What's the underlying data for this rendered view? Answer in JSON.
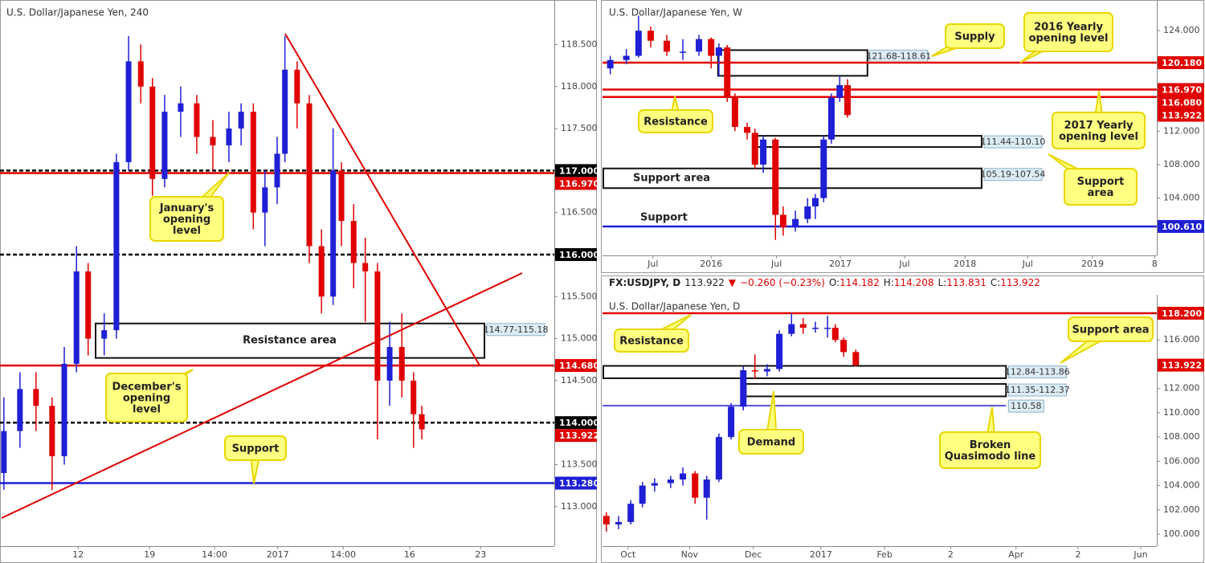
{
  "chart_data": [
    {
      "type": "candlestick",
      "title": "U.S. Dollar/Japanese Yen, 240",
      "up_color": "#1f1fd6",
      "down_color": "#e00000",
      "xlim": [
        0,
        100
      ],
      "ylim": [
        112.53,
        119.03
      ],
      "xticks": [
        {
          "value": 14.1,
          "label": "12"
        },
        {
          "value": 27.0,
          "label": "19"
        },
        {
          "value": 38.7,
          "label": "14:00"
        },
        {
          "value": 50.1,
          "label": "2017"
        },
        {
          "value": 61.9,
          "label": "14:00"
        },
        {
          "value": 73.9,
          "label": "16"
        },
        {
          "value": 86.7,
          "label": "23"
        }
      ],
      "yticks": [
        {
          "value": 113,
          "label": "113.000"
        },
        {
          "value": 113.5,
          "label": "113.500"
        },
        {
          "value": 114.5,
          "label": "114.500"
        },
        {
          "value": 115,
          "label": "115.000"
        },
        {
          "value": 115.5,
          "label": "115.500"
        },
        {
          "value": 116.5,
          "label": "116.500"
        },
        {
          "value": 117.5,
          "label": "117.500"
        },
        {
          "value": 118,
          "label": "118.000"
        },
        {
          "value": 118.5,
          "label": "118.500"
        }
      ],
      "x": [
        0.7,
        3.6,
        6.5,
        9.4,
        11.6,
        13.8,
        15.9,
        18.8,
        21,
        23.2,
        25.4,
        27.5,
        29.7,
        32.6,
        35.5,
        38.4,
        41.3,
        43.5,
        45.7,
        47.8,
        50,
        51.4,
        53.6,
        55.8,
        58,
        60.1,
        61.6,
        63.8,
        65.9,
        68.1,
        70.3,
        72.5,
        74.6,
        76.1
      ],
      "candles": [
        [
          113.4,
          114.3,
          113.2,
          113.9
        ],
        [
          113.9,
          114.6,
          113.7,
          114.4
        ],
        [
          114.4,
          114.6,
          113.9,
          114.2
        ],
        [
          114.2,
          114.3,
          113.2,
          113.6
        ],
        [
          113.6,
          114.9,
          113.5,
          114.7
        ],
        [
          114.7,
          116.1,
          114.6,
          115.8
        ],
        [
          115.8,
          115.9,
          114.8,
          115.0
        ],
        [
          115.0,
          115.3,
          114.8,
          115.1
        ],
        [
          115.1,
          117.2,
          115.0,
          117.1
        ],
        [
          117.1,
          118.6,
          117.0,
          118.3
        ],
        [
          118.3,
          118.5,
          117.8,
          118.0
        ],
        [
          118.0,
          118.1,
          116.7,
          116.9
        ],
        [
          116.9,
          117.9,
          116.8,
          117.7
        ],
        [
          117.7,
          118.0,
          117.4,
          117.8
        ],
        [
          117.8,
          117.9,
          117.2,
          117.4
        ],
        [
          117.4,
          117.6,
          117.0,
          117.3
        ],
        [
          117.3,
          117.7,
          117.1,
          117.5
        ],
        [
          117.5,
          117.8,
          117.3,
          117.7
        ],
        [
          117.7,
          117.8,
          116.3,
          116.5
        ],
        [
          116.5,
          117.0,
          116.1,
          116.8
        ],
        [
          116.8,
          117.4,
          116.6,
          117.2
        ],
        [
          117.2,
          118.6,
          117.1,
          118.2
        ],
        [
          118.2,
          118.3,
          117.5,
          117.8
        ],
        [
          117.8,
          117.9,
          115.9,
          116.1
        ],
        [
          116.1,
          116.3,
          115.3,
          115.5
        ],
        [
          115.5,
          117.5,
          115.4,
          117.0
        ],
        [
          117.0,
          117.1,
          116.1,
          116.4
        ],
        [
          116.4,
          116.6,
          115.6,
          115.9
        ],
        [
          115.9,
          116.2,
          115.2,
          115.8
        ],
        [
          115.8,
          115.9,
          113.8,
          114.5
        ],
        [
          114.5,
          115.2,
          114.2,
          114.9
        ],
        [
          114.9,
          115.3,
          114.3,
          114.5
        ],
        [
          114.5,
          114.6,
          113.7,
          114.1
        ],
        [
          114.1,
          114.2,
          113.8,
          113.92
        ]
      ],
      "levels": [
        {
          "value": 117,
          "label": "117.000",
          "color": "#000000",
          "style": "dashed"
        },
        {
          "value": 116.97,
          "label": "116.970",
          "color": "#e00000",
          "style": "solid"
        },
        {
          "value": 116,
          "label": "116.000",
          "color": "#000000",
          "style": "dashed"
        },
        {
          "value": 114.68,
          "label": "114.680",
          "color": "#e00000",
          "style": "solid"
        },
        {
          "value": 114,
          "label": "114.000",
          "color": "#000000",
          "style": "dashed"
        },
        {
          "value": 113.922,
          "label": "113.922",
          "color": "#e00000",
          "style": "none"
        },
        {
          "value": 113.28,
          "label": "113.280",
          "color": "#1f1fd6",
          "style": "solid"
        }
      ],
      "zones": [
        {
          "low": 114.77,
          "high": 115.18,
          "x": [
            17.1,
            87.4
          ],
          "label": "114.77-115.18",
          "text": "Resistance area"
        }
      ],
      "callouts": [
        {
          "lines": [
            "January's",
            "opening",
            "level"
          ]
        },
        {
          "lines": [
            "December's",
            "opening",
            "level"
          ]
        },
        {
          "lines": [
            "Support"
          ]
        }
      ],
      "notes": []
    },
    {
      "type": "candlestick",
      "title": "U.S. Dollar/Japanese Yen, W",
      "up_color": "#1f1fd6",
      "down_color": "#e00000",
      "xlim": [
        0,
        100
      ],
      "ylim": [
        97.15,
        127.67
      ],
      "xticks": [
        {
          "value": 9.1,
          "label": "Jul"
        },
        {
          "value": 19.6,
          "label": "2016"
        },
        {
          "value": 31.4,
          "label": "Jul"
        },
        {
          "value": 42.9,
          "label": "2017"
        },
        {
          "value": 54.5,
          "label": "Jul"
        },
        {
          "value": 65.4,
          "label": "2018"
        },
        {
          "value": 76.7,
          "label": "Jul"
        },
        {
          "value": 88.4,
          "label": "2019"
        },
        {
          "value": 99.6,
          "label": "8"
        }
      ],
      "yticks": [
        {
          "value": 124,
          "label": "124.000"
        },
        {
          "value": 112,
          "label": "112.000"
        },
        {
          "value": 108,
          "label": "108.000"
        },
        {
          "value": 104,
          "label": "104.000"
        }
      ],
      "x": [
        1.4,
        4.3,
        6.5,
        8.7,
        11.6,
        14.5,
        17.4,
        19.6,
        21,
        22.5,
        23.9,
        26.1,
        27.5,
        29,
        31.2,
        32.6,
        34.8,
        37,
        38.4,
        39.9,
        41.3,
        42.8,
        44.2
      ],
      "candles": [
        [
          119.5,
          121.0,
          118.8,
          120.5
        ],
        [
          120.5,
          121.8,
          120.0,
          121.0
        ],
        [
          121.0,
          125.8,
          120.8,
          124.0
        ],
        [
          124.0,
          124.5,
          122.0,
          122.8
        ],
        [
          122.8,
          123.5,
          121.0,
          121.5
        ],
        [
          121.5,
          123.0,
          120.5,
          121.5
        ],
        [
          121.5,
          123.5,
          121.0,
          123.0
        ],
        [
          123.0,
          123.2,
          119.5,
          121.0
        ],
        [
          121.0,
          122.5,
          118.5,
          122.0
        ],
        [
          122.0,
          122.3,
          115.5,
          116.0
        ],
        [
          116.0,
          116.5,
          112.0,
          112.5
        ],
        [
          112.5,
          113.0,
          111.0,
          111.8
        ],
        [
          111.8,
          112.3,
          107.5,
          108.0
        ],
        [
          108.0,
          111.5,
          107.0,
          111.0
        ],
        [
          111.0,
          111.2,
          99.0,
          102.0
        ],
        [
          102.0,
          103.0,
          99.5,
          100.5
        ],
        [
          100.5,
          102.5,
          100.0,
          101.5
        ],
        [
          101.5,
          104.0,
          101.0,
          103.0
        ],
        [
          103.0,
          104.5,
          101.5,
          104.0
        ],
        [
          104.0,
          111.5,
          103.5,
          111.0
        ],
        [
          111.0,
          116.5,
          110.5,
          116.0
        ],
        [
          116.0,
          118.6,
          115.5,
          117.5
        ],
        [
          117.5,
          118.2,
          113.6,
          113.92
        ]
      ],
      "levels": [
        {
          "value": 120.18,
          "label": "120.180",
          "color": "#e00000",
          "style": "solid"
        },
        {
          "value": 116.97,
          "label": "116.970",
          "color": "#e00000",
          "style": "solid"
        },
        {
          "value": 116.08,
          "label": "116.080",
          "color": "#e00000",
          "style": "solid"
        },
        {
          "value": 113.922,
          "label": "113.922",
          "color": "#e00000",
          "style": "none"
        },
        {
          "value": 100.61,
          "label": "100.610",
          "color": "#1f1fd6",
          "style": "solid"
        }
      ],
      "zones": [
        {
          "low": 118.61,
          "high": 121.68,
          "x": [
            20.7,
            47.8
          ],
          "label": "121.68-118.61"
        },
        {
          "low": 110.1,
          "high": 111.44,
          "x": [
            27.5,
            68.4
          ],
          "label": "111.44-110.10"
        },
        {
          "low": 105.19,
          "high": 107.54,
          "x": [
            0,
            68.4
          ],
          "label": "105.19-107.54",
          "text": "Support area"
        }
      ],
      "callouts": [
        {
          "lines": [
            "Resistance"
          ]
        },
        {
          "lines": [
            "Supply"
          ]
        },
        {
          "lines": [
            "2016 Yearly",
            "opening level"
          ]
        },
        {
          "lines": [
            "2017 Yearly",
            "opening level"
          ]
        },
        {
          "lines": [
            "Support",
            "area"
          ]
        }
      ],
      "notes": [
        "Support"
      ]
    },
    {
      "type": "candlestick",
      "title": "U.S. Dollar/Japanese Yen, D",
      "header": {
        "symbol": "FX:USDJPY, D",
        "last": 113.922,
        "arrow": "▼",
        "change": "−0.260 (−0.23%)",
        "ohlc": [
          {
            "name": "O:",
            "value": 114.182
          },
          {
            "name": "H:",
            "value": 114.208
          },
          {
            "name": "L:",
            "value": 113.831
          },
          {
            "name": "C:",
            "value": 113.922
          }
        ]
      },
      "up_color": "#1f1fd6",
      "down_color": "#e00000",
      "xlim": [
        0,
        100
      ],
      "ylim": [
        99.01,
        119.72
      ],
      "xticks": [
        {
          "value": 4.6,
          "label": "Oct"
        },
        {
          "value": 15.7,
          "label": "Nov"
        },
        {
          "value": 27.2,
          "label": "Dec"
        },
        {
          "value": 39.4,
          "label": "2017"
        },
        {
          "value": 50.9,
          "label": "Feb"
        },
        {
          "value": 62.8,
          "label": "2"
        },
        {
          "value": 74.6,
          "label": "Apr"
        },
        {
          "value": 85.8,
          "label": "2"
        },
        {
          "value": 97.1,
          "label": "Jun"
        }
      ],
      "yticks": [
        {
          "value": 100,
          "label": "100.000"
        },
        {
          "value": 102,
          "label": "102.000"
        },
        {
          "value": 104,
          "label": "104.000"
        },
        {
          "value": 106,
          "label": "106.000"
        },
        {
          "value": 108,
          "label": "108.000"
        },
        {
          "value": 110,
          "label": "110.000"
        },
        {
          "value": 112,
          "label": "112.000"
        },
        {
          "value": 116,
          "label": "116.000"
        }
      ],
      "x": [
        0.7,
        2.9,
        5.1,
        7.2,
        9.4,
        12.3,
        14.5,
        16.7,
        18.8,
        21,
        23.2,
        25.4,
        27.5,
        29.7,
        31.9,
        34.1,
        36.2,
        38.4,
        40.6,
        42,
        43.5,
        45.7
      ],
      "candles": [
        [
          101.5,
          101.8,
          100.2,
          100.8
        ],
        [
          100.8,
          101.5,
          100.4,
          101.0
        ],
        [
          101.0,
          102.8,
          100.8,
          102.5
        ],
        [
          102.5,
          104.3,
          102.2,
          104.0
        ],
        [
          104.0,
          104.6,
          103.5,
          104.2
        ],
        [
          104.2,
          104.8,
          103.8,
          104.5
        ],
        [
          104.5,
          105.5,
          104.0,
          105.0
        ],
        [
          105.0,
          105.2,
          102.5,
          103.0
        ],
        [
          103.0,
          104.8,
          101.2,
          104.5
        ],
        [
          104.5,
          108.3,
          104.3,
          108.0
        ],
        [
          108.0,
          110.8,
          107.8,
          110.5
        ],
        [
          110.5,
          113.8,
          110.2,
          113.5
        ],
        [
          113.5,
          114.8,
          112.8,
          113.4
        ],
        [
          113.4,
          114.0,
          113.0,
          113.6
        ],
        [
          113.6,
          116.8,
          113.4,
          116.5
        ],
        [
          116.5,
          118.2,
          116.3,
          117.3
        ],
        [
          117.3,
          117.8,
          116.5,
          117.0
        ],
        [
          117.0,
          117.5,
          116.6,
          117.0
        ],
        [
          117.0,
          118.0,
          116.2,
          117.0
        ],
        [
          117.0,
          117.3,
          115.8,
          116.0
        ],
        [
          116.0,
          116.2,
          114.6,
          115.0
        ],
        [
          115.0,
          115.2,
          113.8,
          113.92
        ]
      ],
      "levels": [
        {
          "value": 118.2,
          "label": "118.200",
          "color": "#e00000",
          "style": "solid"
        },
        {
          "value": 113.922,
          "label": "113.922",
          "color": "#e00000",
          "style": "none"
        },
        {
          "value": 110.58,
          "color": "#1f1fd6",
          "style": "solid",
          "x": [
            0,
            72.8
          ]
        }
      ],
      "zones": [
        {
          "low": 112.84,
          "high": 113.86,
          "x": [
            0,
            72.8
          ],
          "label": "112.84-113.86"
        },
        {
          "low": 111.35,
          "high": 112.37,
          "x": [
            25.7,
            72.8
          ],
          "label": "111.35-112.37"
        }
      ],
      "callouts": [
        {
          "lines": [
            "Resistance"
          ]
        },
        {
          "lines": [
            "Support area"
          ]
        },
        {
          "lines": [
            "Demand"
          ]
        },
        {
          "lines": [
            "Broken",
            "Quasimodo line"
          ]
        }
      ],
      "notes": []
    }
  ]
}
